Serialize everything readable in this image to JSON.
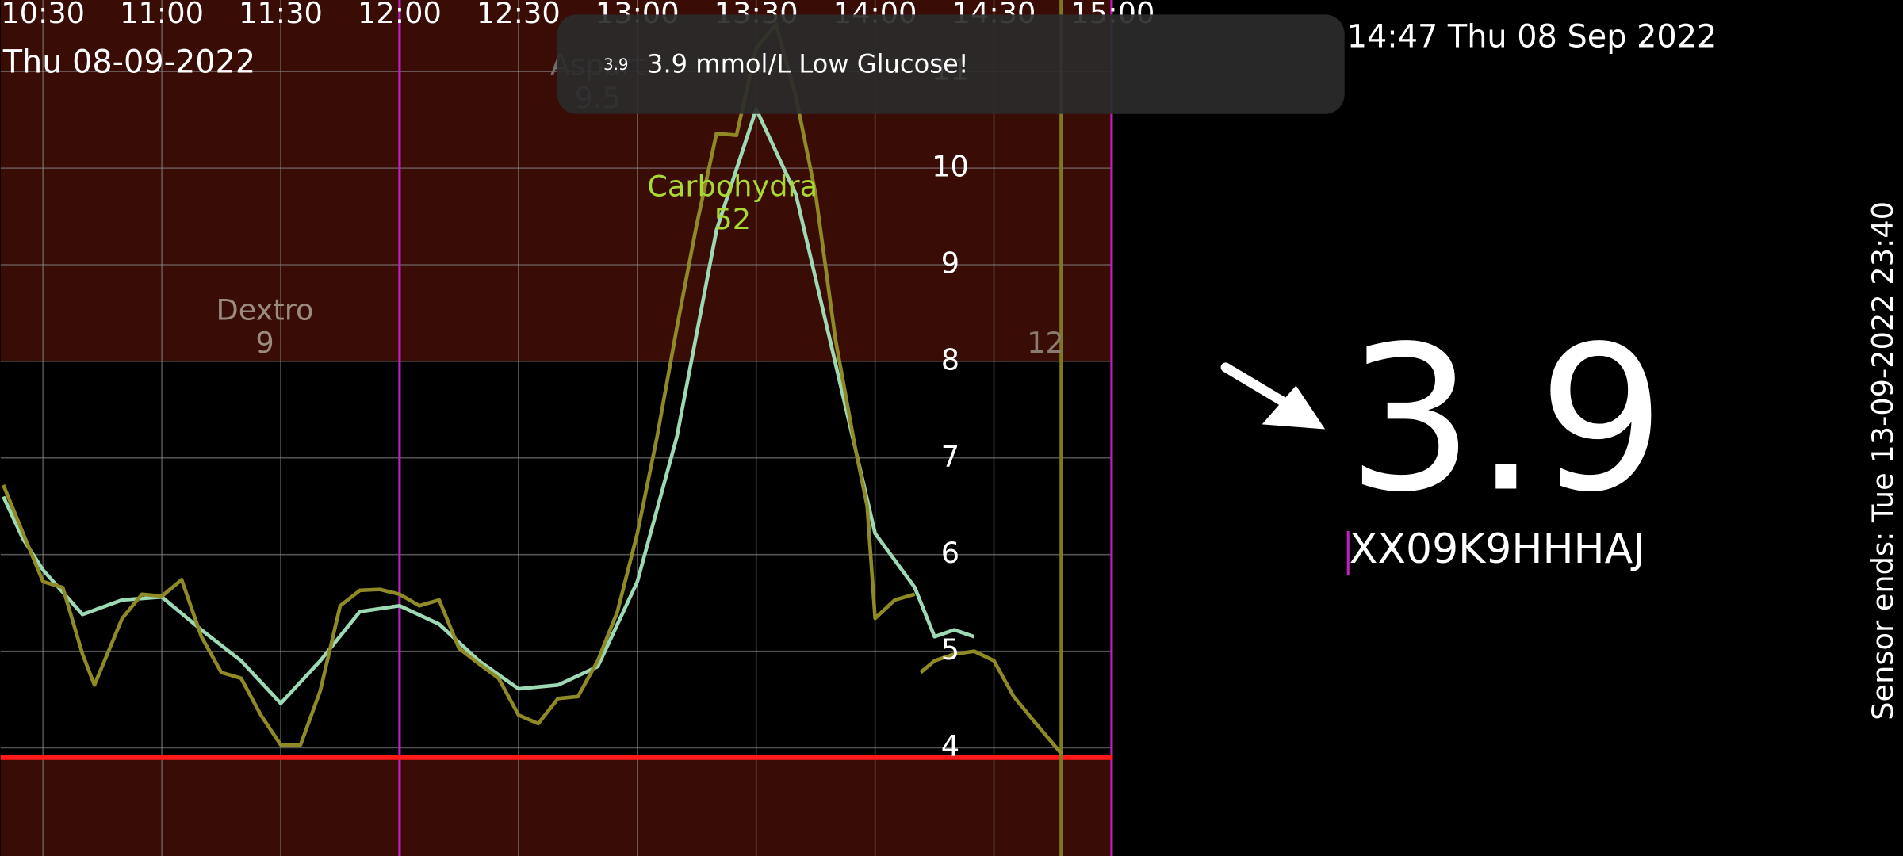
{
  "chart_data": {
    "type": "line",
    "date": "Thu 08-09-2022",
    "xlim": [
      619.3,
      900
    ],
    "xticks": [
      {
        "value": 630,
        "label": "10:30"
      },
      {
        "value": 660,
        "label": "11:00"
      },
      {
        "value": 690,
        "label": "11:30"
      },
      {
        "value": 720,
        "label": "12:00"
      },
      {
        "value": 750,
        "label": "12:30"
      },
      {
        "value": 780,
        "label": "13:00"
      },
      {
        "value": 810,
        "label": "13:30"
      },
      {
        "value": 840,
        "label": "14:00"
      },
      {
        "value": 870,
        "label": "14:30"
      },
      {
        "value": 900,
        "label": "15:00"
      }
    ],
    "ylim": [
      2.88,
      11.74
    ],
    "yticks": [
      4,
      5,
      6,
      7,
      8,
      9,
      10,
      11
    ],
    "grid": true,
    "high": 8,
    "low": 3.9,
    "low_color": "#ff1a1a",
    "out_of_range_color": "#3a0c06",
    "marker_x": [
      720,
      900
    ],
    "marker_color": "#c21fc2",
    "now_x": 887,
    "now_color": "#7d7a1e",
    "series": [
      {
        "color": "#9cd9b4",
        "x": [
          620,
          625,
          630,
          640,
          650,
          660,
          670,
          680,
          690,
          700,
          710,
          720,
          730,
          740,
          750,
          760,
          770,
          780,
          790,
          800,
          810,
          820,
          830,
          840,
          850,
          855,
          860,
          865
        ],
        "values": [
          6.6,
          6.16,
          5.84,
          5.38,
          5.53,
          5.56,
          5.22,
          4.9,
          4.46,
          4.9,
          5.41,
          5.47,
          5.28,
          4.9,
          4.61,
          4.65,
          4.84,
          5.72,
          7.22,
          9.36,
          10.61,
          9.73,
          7.98,
          6.22,
          5.66,
          5.15,
          5.22,
          5.15
        ]
      },
      {
        "color": "#8f8a26",
        "x": [
          620,
          625,
          630,
          635,
          640,
          643,
          650,
          655,
          660,
          665,
          670,
          675,
          680,
          685,
          690,
          695,
          700,
          705,
          710,
          715,
          720,
          725,
          730,
          735,
          740,
          745,
          750,
          755,
          760,
          765,
          770,
          775,
          780,
          785,
          790,
          795,
          800,
          805,
          810,
          815,
          820,
          825,
          830,
          835,
          838,
          840,
          845,
          850,
          851,
          851.5,
          855,
          860,
          865,
          870,
          875,
          880,
          887
        ],
        "values": [
          6.72,
          6.22,
          5.72,
          5.66,
          4.97,
          4.65,
          5.34,
          5.59,
          5.57,
          5.74,
          5.15,
          4.78,
          4.72,
          4.34,
          4.03,
          4.03,
          4.59,
          5.47,
          5.63,
          5.64,
          5.59,
          5.47,
          5.53,
          5.03,
          4.87,
          4.72,
          4.34,
          4.25,
          4.51,
          4.53,
          4.9,
          5.41,
          6.22,
          7.22,
          8.35,
          9.42,
          10.36,
          10.34,
          11.24,
          11.49,
          10.74,
          9.73,
          8.23,
          7.1,
          6.5,
          5.34,
          5.53,
          5.59,
          null,
          4.78,
          4.9,
          4.97,
          5.0,
          4.9,
          4.53,
          4.28,
          3.94
        ]
      }
    ],
    "annotations": [
      {
        "label": "Dextro",
        "amount": 9,
        "x": 686,
        "color": "#9b8a80"
      },
      {
        "label": "Aspart",
        "amount": 9.5,
        "x": 770,
        "color": "#6f6f6f"
      },
      {
        "label": "Carbohydra",
        "amount": 52,
        "x": 804,
        "color": "#a8d832"
      },
      {
        "label": "",
        "amount": 12,
        "x": 883,
        "color": "#8a7a70"
      }
    ]
  },
  "notification": {
    "icon_text": "3.9",
    "message": "3.9 mmol/L Low Glucose!"
  },
  "status": {
    "datetime": "14:47 Thu 08 Sep 2022"
  },
  "current": {
    "value": "3.9",
    "sensor_id": "XX09K9HHHAJ",
    "sensor_ends": "Sensor ends: Tue 13-09-2022 23:40"
  }
}
